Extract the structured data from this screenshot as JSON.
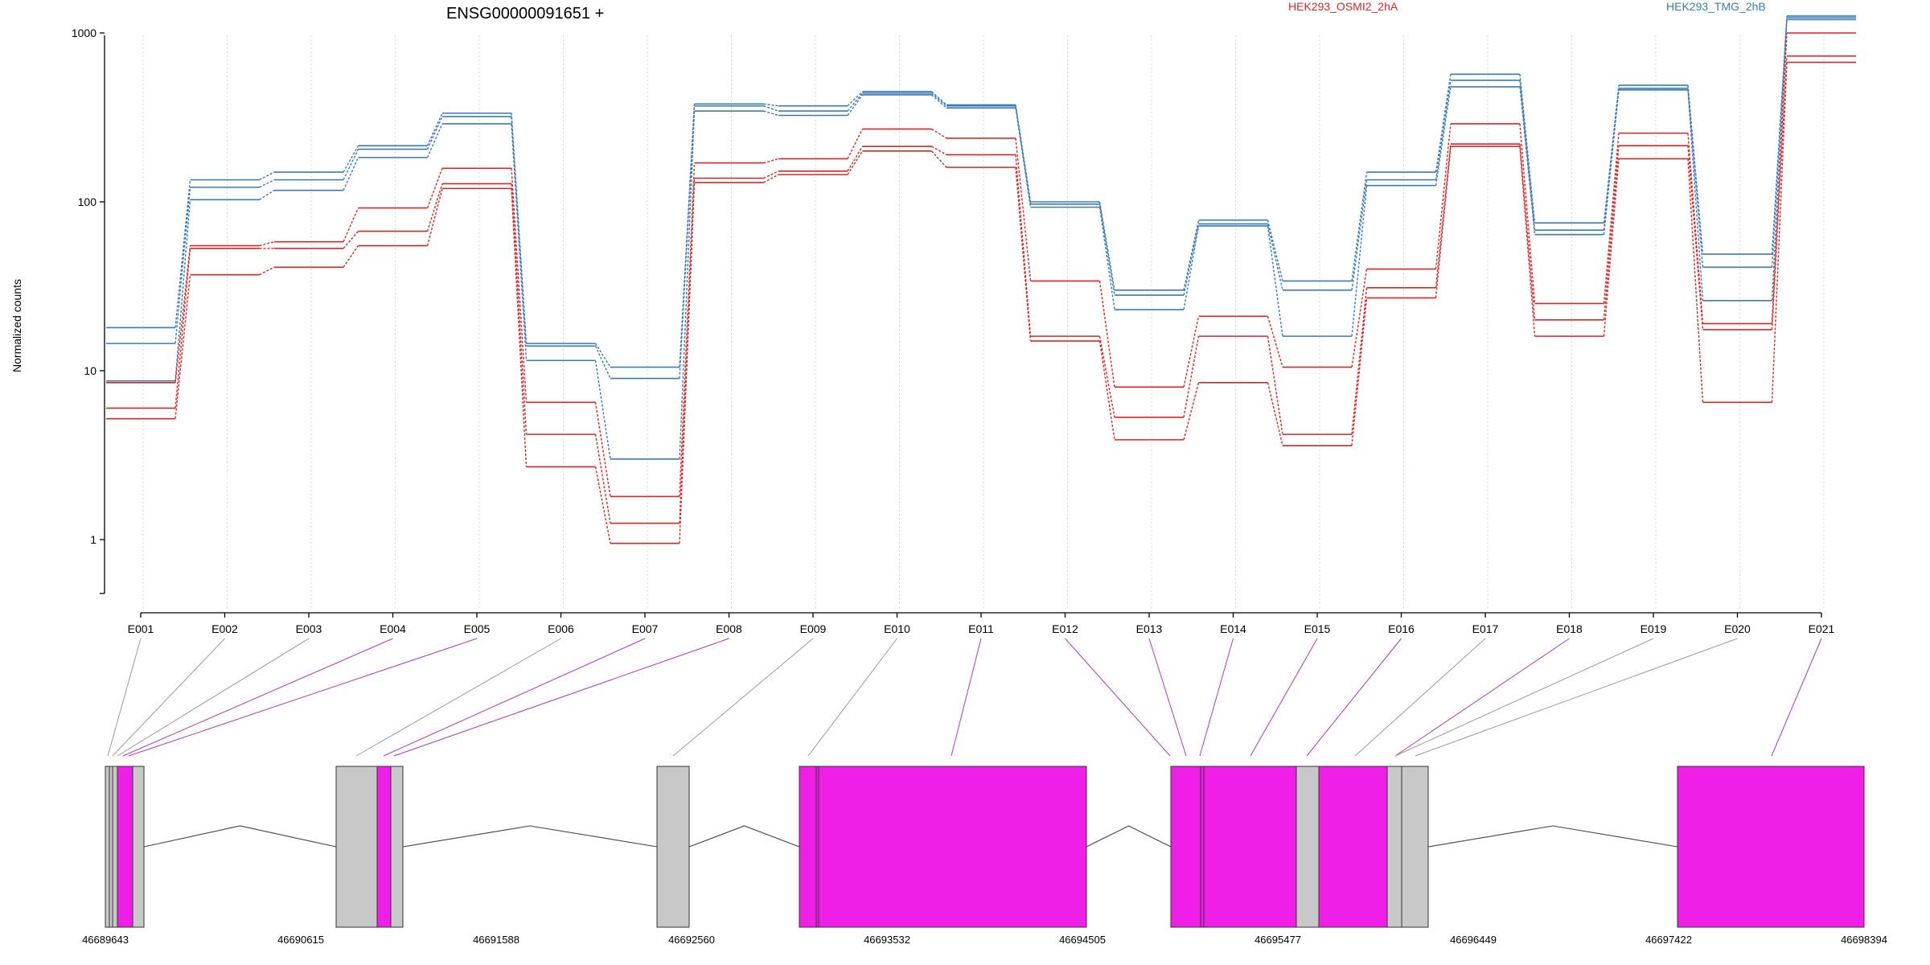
{
  "chart_data": {
    "type": "line",
    "title": "ENSG00000091651 +",
    "ylabel": "Normalized counts",
    "xlabel": "",
    "y_scale": "log",
    "ylim": [
      0.5,
      1500
    ],
    "y_ticks": [
      "1",
      "10",
      "100",
      "1000"
    ],
    "grid": "vertical, light dotted",
    "legend": {
      "placement": "top-right",
      "entries": [
        {
          "label": "HEK293_OSMI2_2hA",
          "color": "#d62728"
        },
        {
          "label": "HEK293_TMG_2hB",
          "color": "#3a7ab8"
        }
      ]
    },
    "exons": [
      "E001",
      "E002",
      "E003",
      "E004",
      "E005",
      "E006",
      "E007",
      "E008",
      "E009",
      "E010",
      "E011",
      "E012",
      "E013",
      "E014",
      "E015",
      "E016",
      "E017",
      "E018",
      "E019",
      "E020",
      "E021"
    ],
    "series": [
      {
        "name": "HEK293_TMG_2hB",
        "group": "blue",
        "values": [
          18,
          135,
          150,
          215,
          335,
          14.5,
          10.5,
          380,
          370,
          450,
          375,
          100,
          30,
          78,
          34,
          150,
          570,
          75,
          490,
          49,
          1260
        ]
      },
      {
        "name": "HEK293_TMG_2hB",
        "group": "blue",
        "values": [
          14.5,
          122,
          135,
          205,
          320,
          14,
          9,
          370,
          345,
          440,
          370,
          97,
          28,
          74,
          30,
          135,
          525,
          68,
          470,
          41,
          1230
        ]
      },
      {
        "name": "HEK293_TMG_2hB",
        "group": "blue",
        "values": [
          8.7,
          103,
          117,
          183,
          290,
          11.5,
          3,
          345,
          325,
          430,
          360,
          93,
          23,
          72,
          16,
          125,
          480,
          64,
          460,
          26,
          1200
        ]
      },
      {
        "name": "HEK293_OSMI2_2hA",
        "group": "red",
        "values": [
          8.5,
          55,
          58,
          92,
          158,
          6.5,
          1.8,
          170,
          180,
          270,
          238,
          34,
          8,
          21,
          10.5,
          40,
          290,
          25,
          255,
          19,
          1000
        ]
      },
      {
        "name": "HEK293_OSMI2_2hA",
        "group": "red",
        "values": [
          6,
          53,
          53,
          67,
          128,
          4.2,
          1.25,
          138,
          152,
          213,
          190,
          16,
          5.3,
          16,
          4.2,
          31,
          220,
          20,
          215,
          17.5,
          730
        ]
      },
      {
        "name": "HEK293_OSMI2_2hA",
        "group": "red",
        "values": [
          5.2,
          37,
          41,
          55,
          120,
          2.7,
          0.95,
          130,
          145,
          200,
          160,
          15,
          3.9,
          8.5,
          3.6,
          27,
          213,
          16,
          180,
          6.5,
          670
        ]
      }
    ],
    "gene_model": {
      "coords": [
        "46689643",
        "46690615",
        "46691588",
        "46692560",
        "46693532",
        "46694505",
        "46695477",
        "46696449",
        "46697422",
        "46698394"
      ],
      "exon_colors": {
        "highlighted": "#f01fe8",
        "other": "#c8c8c8"
      },
      "highlighted_exons": [
        "E004",
        "E005",
        "E007",
        "E008",
        "E011",
        "E012",
        "E013",
        "E014",
        "E015",
        "E016",
        "E018",
        "E021"
      ]
    }
  }
}
